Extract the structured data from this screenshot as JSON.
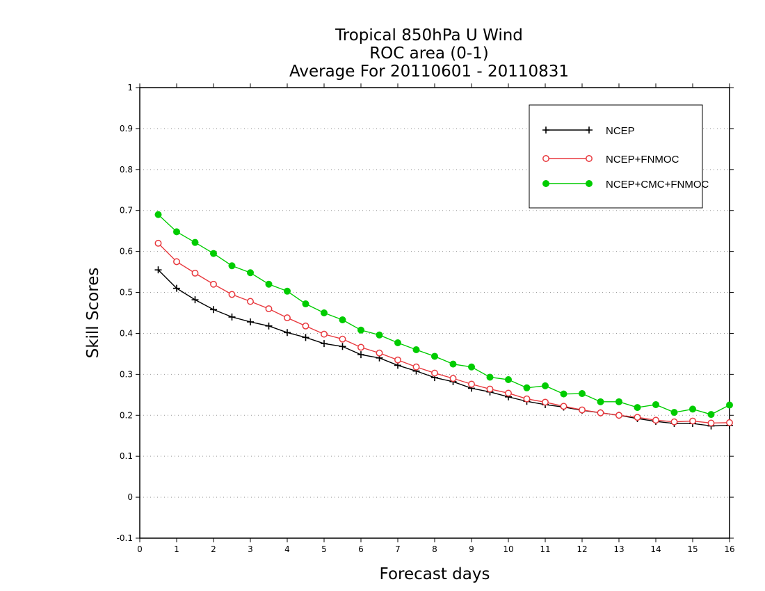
{
  "chart_data": {
    "type": "line",
    "title": [
      "Tropical 850hPa U Wind",
      "ROC area (0-1)",
      "Average For 20110601 - 20110831"
    ],
    "xlabel": "Forecast days",
    "ylabel": "Skill Scores",
    "xlim": [
      0,
      16
    ],
    "ylim": [
      -0.1,
      1
    ],
    "xticks": [
      "0",
      "1",
      "2",
      "3",
      "4",
      "5",
      "6",
      "7",
      "8",
      "9",
      "10",
      "11",
      "12",
      "13",
      "14",
      "15",
      "16"
    ],
    "yticks": [
      "-0.1",
      "0",
      "0.1",
      "0.2",
      "0.3",
      "0.4",
      "0.5",
      "0.6",
      "0.7",
      "0.8",
      "0.9",
      "1"
    ],
    "grid": "horizontal dotted",
    "legend_position": "top-right",
    "x": [
      0.5,
      1,
      1.5,
      2,
      2.5,
      3,
      3.5,
      4,
      4.5,
      5,
      5.5,
      6,
      6.5,
      7,
      7.5,
      8,
      8.5,
      9,
      9.5,
      10,
      10.5,
      11,
      11.5,
      12,
      12.5,
      13,
      13.5,
      14,
      14.5,
      15,
      15.5,
      16
    ],
    "series": [
      {
        "name": "NCEP",
        "color": "#000000",
        "marker": "plus",
        "values": [
          0.555,
          0.51,
          0.482,
          0.458,
          0.44,
          0.428,
          0.418,
          0.402,
          0.39,
          0.375,
          0.368,
          0.348,
          0.34,
          0.322,
          0.308,
          0.292,
          0.282,
          0.266,
          0.257,
          0.245,
          0.234,
          0.226,
          0.22,
          0.212,
          0.206,
          0.2,
          0.192,
          0.185,
          0.18,
          0.18,
          0.174,
          0.175
        ]
      },
      {
        "name": "NCEP+FNMOC",
        "color": "#e8393e",
        "marker": "open-circle",
        "values": [
          0.62,
          0.575,
          0.547,
          0.52,
          0.495,
          0.478,
          0.46,
          0.438,
          0.418,
          0.398,
          0.386,
          0.366,
          0.352,
          0.335,
          0.318,
          0.303,
          0.29,
          0.276,
          0.264,
          0.254,
          0.24,
          0.232,
          0.222,
          0.213,
          0.206,
          0.2,
          0.195,
          0.188,
          0.184,
          0.186,
          0.181,
          0.182
        ]
      },
      {
        "name": "NCEP+CMC+FNMOC",
        "color": "#00cc00",
        "marker": "filled-circle",
        "values": [
          0.69,
          0.648,
          0.622,
          0.595,
          0.565,
          0.548,
          0.52,
          0.503,
          0.472,
          0.45,
          0.433,
          0.408,
          0.396,
          0.377,
          0.36,
          0.344,
          0.325,
          0.318,
          0.293,
          0.287,
          0.267,
          0.272,
          0.252,
          0.253,
          0.233,
          0.233,
          0.219,
          0.226,
          0.207,
          0.215,
          0.202,
          0.225
        ]
      }
    ]
  }
}
